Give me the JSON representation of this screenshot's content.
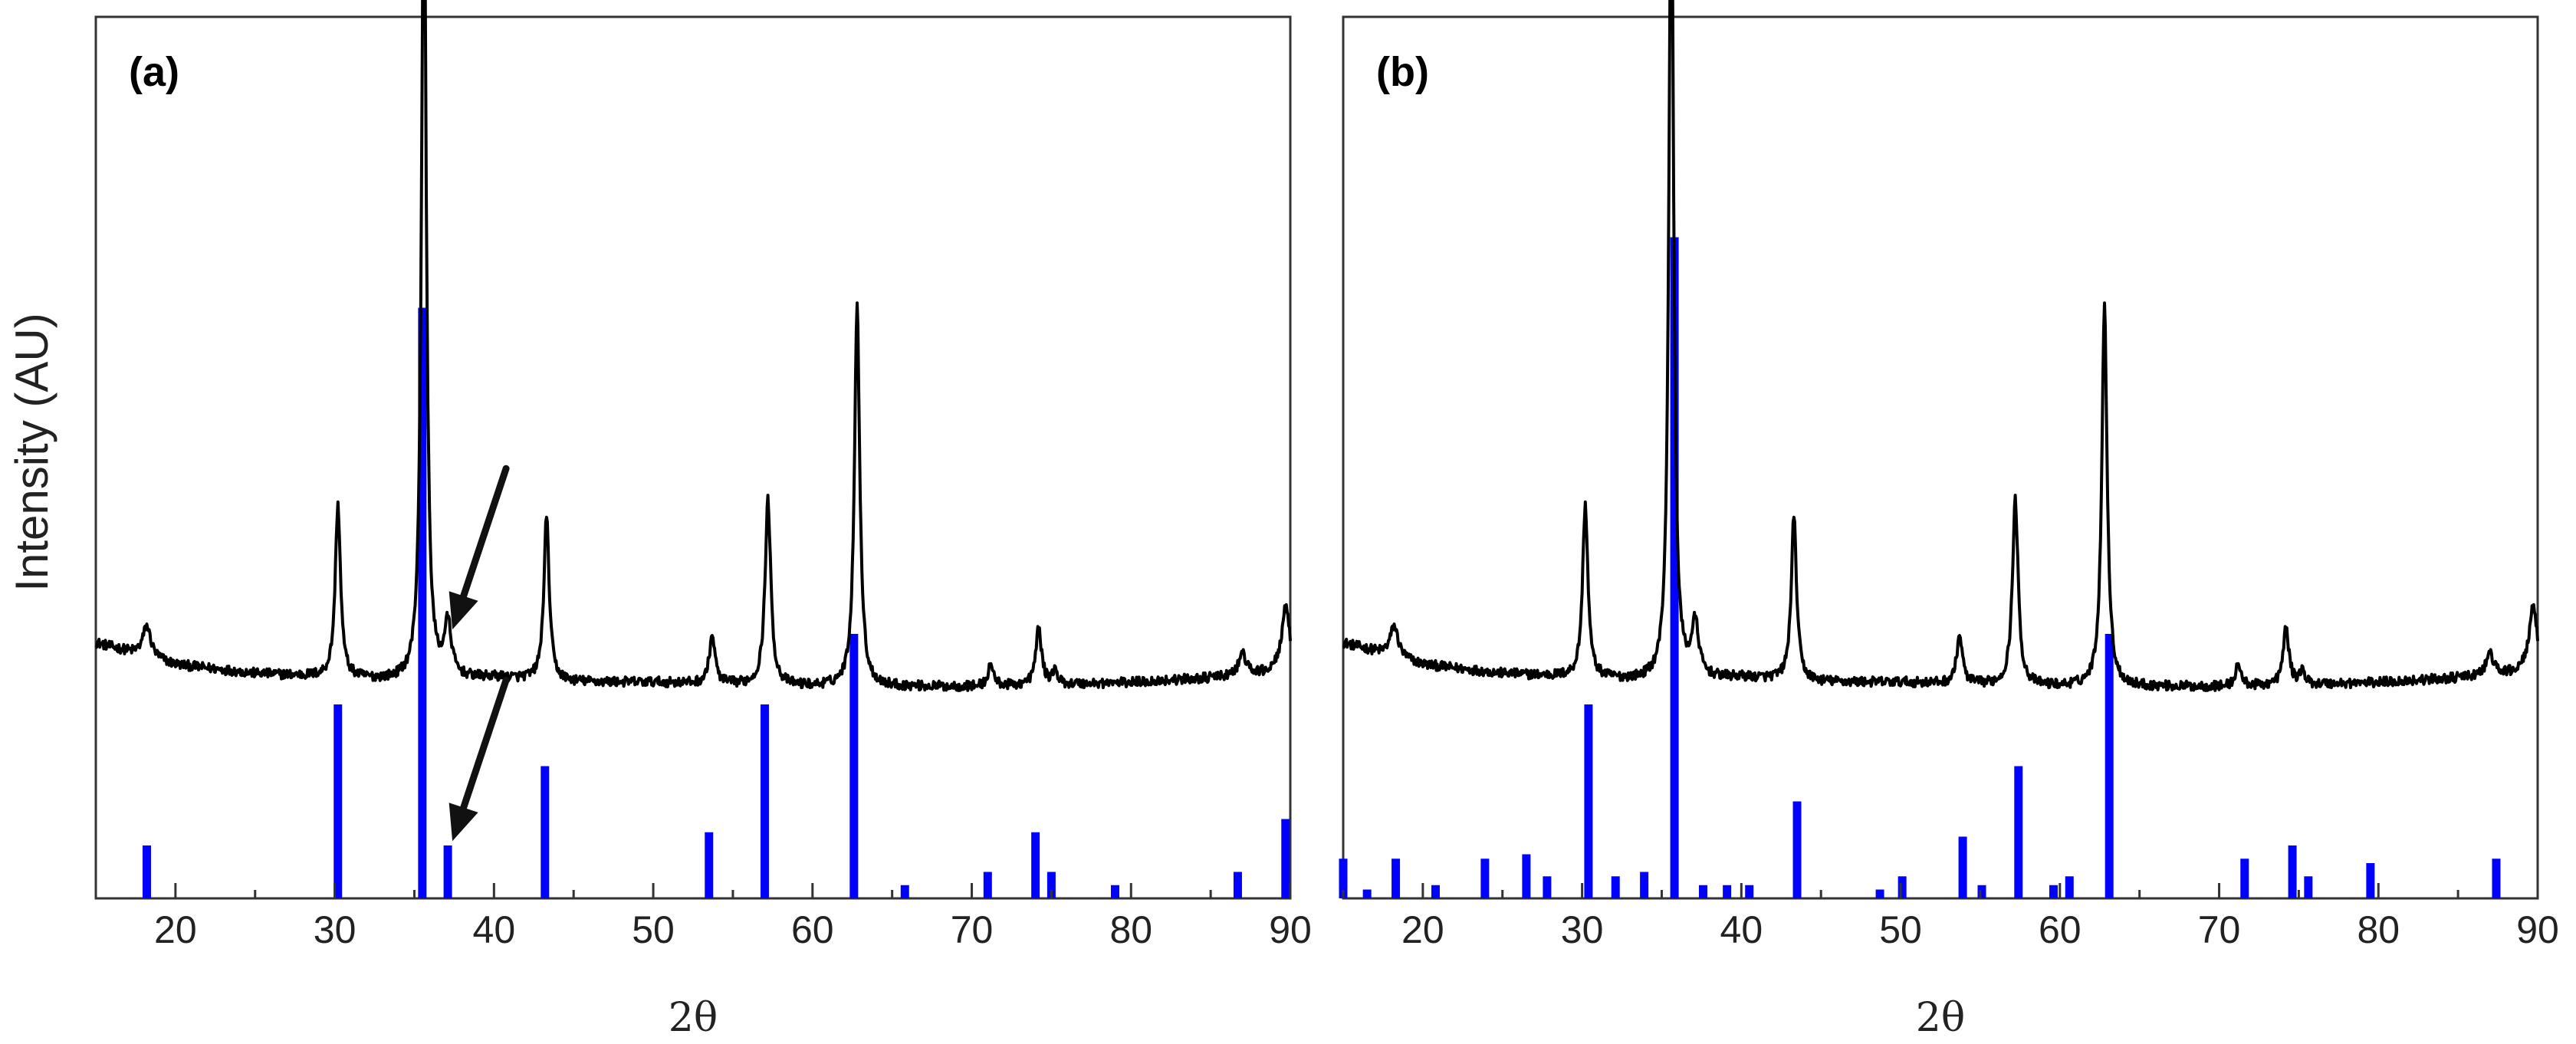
{
  "figure": {
    "ylabel": "Intensity (AU)"
  },
  "chart_data": [
    {
      "type": "line",
      "panel_label": "(a)",
      "xlabel": "2θ",
      "ylabel": "Intensity (AU)",
      "xlim": [
        15,
        90
      ],
      "xticks": [
        20,
        30,
        40,
        50,
        60,
        70,
        80,
        90
      ],
      "ylim": [
        0,
        100
      ],
      "yticks_shown": false,
      "legend": "none",
      "series_color": "#000000",
      "reference_color": "#0000ff",
      "pattern": {
        "baseline": [
          [
            15,
            29.0
          ],
          [
            20,
            26.5
          ],
          [
            25,
            25.5
          ],
          [
            30,
            25.0
          ],
          [
            35,
            24.5
          ],
          [
            40,
            25.0
          ],
          [
            45,
            24.5
          ],
          [
            50,
            24.5
          ],
          [
            55,
            24.2
          ],
          [
            60,
            24.0
          ],
          [
            65,
            24.0
          ],
          [
            70,
            24.0
          ],
          [
            75,
            24.2
          ],
          [
            80,
            24.5
          ],
          [
            85,
            25.0
          ],
          [
            88.5,
            25.5
          ],
          [
            90,
            26.0
          ]
        ],
        "peaks": [
          {
            "x": 18.2,
            "height": 3.5,
            "width": 0.45
          },
          {
            "x": 30.2,
            "height": 19.5,
            "width": 0.3
          },
          {
            "x": 35.6,
            "height": 96.5,
            "width": 0.26
          },
          {
            "x": 37.1,
            "height": 6.0,
            "width": 0.4
          },
          {
            "x": 43.3,
            "height": 18.5,
            "width": 0.3
          },
          {
            "x": 53.7,
            "height": 5.5,
            "width": 0.32
          },
          {
            "x": 57.2,
            "height": 21.0,
            "width": 0.32
          },
          {
            "x": 62.8,
            "height": 43.0,
            "width": 0.3
          },
          {
            "x": 71.2,
            "height": 2.5,
            "width": 0.3
          },
          {
            "x": 74.2,
            "height": 6.5,
            "width": 0.32
          },
          {
            "x": 75.2,
            "height": 1.5,
            "width": 0.3
          },
          {
            "x": 87.0,
            "height": 2.5,
            "width": 0.4
          },
          {
            "x": 89.7,
            "height": 7.0,
            "width": 0.45
          }
        ]
      },
      "reference_lines": [
        {
          "x": 18.2,
          "intensity": 6.0
        },
        {
          "x": 30.2,
          "intensity": 22.0
        },
        {
          "x": 35.5,
          "intensity": 67.0
        },
        {
          "x": 37.1,
          "intensity": 6.0
        },
        {
          "x": 43.2,
          "intensity": 15.0
        },
        {
          "x": 53.5,
          "intensity": 7.5
        },
        {
          "x": 57.0,
          "intensity": 22.0
        },
        {
          "x": 62.6,
          "intensity": 30.0
        },
        {
          "x": 65.8,
          "intensity": 1.5
        },
        {
          "x": 71.0,
          "intensity": 3.0
        },
        {
          "x": 74.0,
          "intensity": 7.5
        },
        {
          "x": 75.0,
          "intensity": 3.0
        },
        {
          "x": 79.0,
          "intensity": 1.5
        },
        {
          "x": 86.7,
          "intensity": 3.0
        },
        {
          "x": 89.7,
          "intensity": 9.0
        }
      ],
      "annotations": [
        {
          "kind": "arrow",
          "target_x": 37.1,
          "target_y": 30.5,
          "dir": "from upper right"
        },
        {
          "kind": "arrow",
          "target_x": 37.1,
          "target_y": 6.5,
          "dir": "from upper right"
        }
      ]
    },
    {
      "type": "line",
      "panel_label": "(b)",
      "xlabel": "2θ",
      "ylabel": "Intensity (AU)",
      "xlim": [
        15,
        90
      ],
      "xticks": [
        20,
        30,
        40,
        50,
        60,
        70,
        80,
        90
      ],
      "ylim": [
        0,
        100
      ],
      "yticks_shown": false,
      "legend": "none",
      "series_color": "#000000",
      "reference_color": "#0000ff",
      "pattern": {
        "baseline": [
          [
            15,
            29.0
          ],
          [
            20,
            26.5
          ],
          [
            25,
            25.5
          ],
          [
            30,
            25.0
          ],
          [
            35,
            24.5
          ],
          [
            40,
            25.0
          ],
          [
            45,
            24.5
          ],
          [
            50,
            24.5
          ],
          [
            55,
            24.2
          ],
          [
            60,
            24.0
          ],
          [
            65,
            24.0
          ],
          [
            70,
            24.0
          ],
          [
            75,
            24.2
          ],
          [
            80,
            24.5
          ],
          [
            85,
            25.0
          ],
          [
            88.5,
            25.5
          ],
          [
            90,
            26.0
          ]
        ],
        "peaks": [
          {
            "x": 18.2,
            "height": 3.5,
            "width": 0.45
          },
          {
            "x": 30.2,
            "height": 19.5,
            "width": 0.3
          },
          {
            "x": 35.6,
            "height": 96.5,
            "width": 0.26
          },
          {
            "x": 37.1,
            "height": 6.0,
            "width": 0.4
          },
          {
            "x": 43.3,
            "height": 18.5,
            "width": 0.3
          },
          {
            "x": 53.7,
            "height": 5.5,
            "width": 0.32
          },
          {
            "x": 57.2,
            "height": 21.0,
            "width": 0.32
          },
          {
            "x": 62.8,
            "height": 43.0,
            "width": 0.3
          },
          {
            "x": 71.2,
            "height": 2.5,
            "width": 0.3
          },
          {
            "x": 74.2,
            "height": 6.5,
            "width": 0.32
          },
          {
            "x": 75.2,
            "height": 1.5,
            "width": 0.3
          },
          {
            "x": 87.0,
            "height": 2.5,
            "width": 0.4
          },
          {
            "x": 89.7,
            "height": 7.0,
            "width": 0.45
          }
        ]
      },
      "reference_lines": [
        {
          "x": 15.0,
          "intensity": 4.5
        },
        {
          "x": 16.5,
          "intensity": 1.0
        },
        {
          "x": 18.3,
          "intensity": 4.5
        },
        {
          "x": 20.8,
          "intensity": 1.5
        },
        {
          "x": 23.9,
          "intensity": 4.5
        },
        {
          "x": 26.5,
          "intensity": 5.0
        },
        {
          "x": 27.8,
          "intensity": 2.5
        },
        {
          "x": 32.1,
          "intensity": 2.5
        },
        {
          "x": 33.9,
          "intensity": 3.0
        },
        {
          "x": 30.4,
          "intensity": 22.0
        },
        {
          "x": 35.8,
          "intensity": 75.0
        },
        {
          "x": 37.6,
          "intensity": 1.5
        },
        {
          "x": 39.1,
          "intensity": 1.5
        },
        {
          "x": 40.5,
          "intensity": 1.5
        },
        {
          "x": 43.5,
          "intensity": 11.0
        },
        {
          "x": 48.7,
          "intensity": 1.0
        },
        {
          "x": 50.1,
          "intensity": 2.5
        },
        {
          "x": 53.9,
          "intensity": 7.0
        },
        {
          "x": 55.1,
          "intensity": 1.5
        },
        {
          "x": 57.4,
          "intensity": 15.0
        },
        {
          "x": 59.6,
          "intensity": 1.5
        },
        {
          "x": 60.6,
          "intensity": 2.5
        },
        {
          "x": 63.1,
          "intensity": 30.0
        },
        {
          "x": 71.6,
          "intensity": 4.5
        },
        {
          "x": 74.6,
          "intensity": 6.0
        },
        {
          "x": 75.6,
          "intensity": 2.5
        },
        {
          "x": 79.5,
          "intensity": 4.0
        },
        {
          "x": 87.4,
          "intensity": 4.5
        }
      ],
      "annotations": []
    }
  ]
}
